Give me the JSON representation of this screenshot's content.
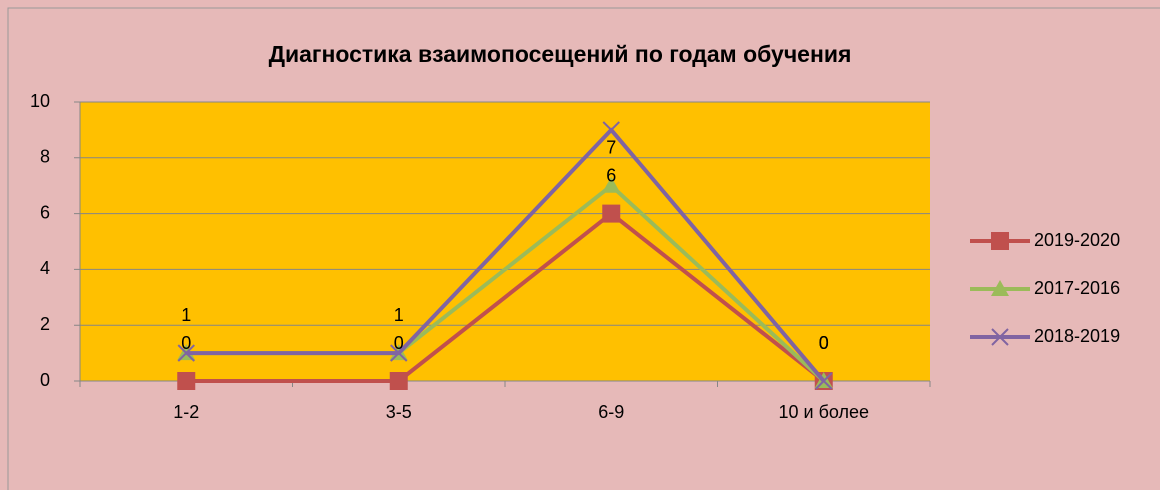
{
  "chart_data": {
    "type": "line",
    "title": "Диагностика взаимопосещений по годам обучения",
    "categories": [
      "1-2",
      "3-5",
      "6-9",
      "10 и более"
    ],
    "series": [
      {
        "name": "2019-2020",
        "color": "#c0504d",
        "marker": "square",
        "data_labels": true,
        "values": [
          0,
          0,
          6,
          0
        ]
      },
      {
        "name": "2017-2016",
        "color": "#9bbb59",
        "marker": "triangle",
        "data_labels": true,
        "values": [
          1,
          1,
          7,
          0
        ]
      },
      {
        "name": "2018-2019",
        "color": "#8064a2",
        "marker": "x",
        "data_labels": false,
        "values": [
          1,
          1,
          9,
          0
        ]
      }
    ],
    "ylim": [
      0,
      10
    ],
    "yticks": [
      0,
      2,
      4,
      6,
      8,
      10
    ],
    "grid": true,
    "legend": "right"
  }
}
